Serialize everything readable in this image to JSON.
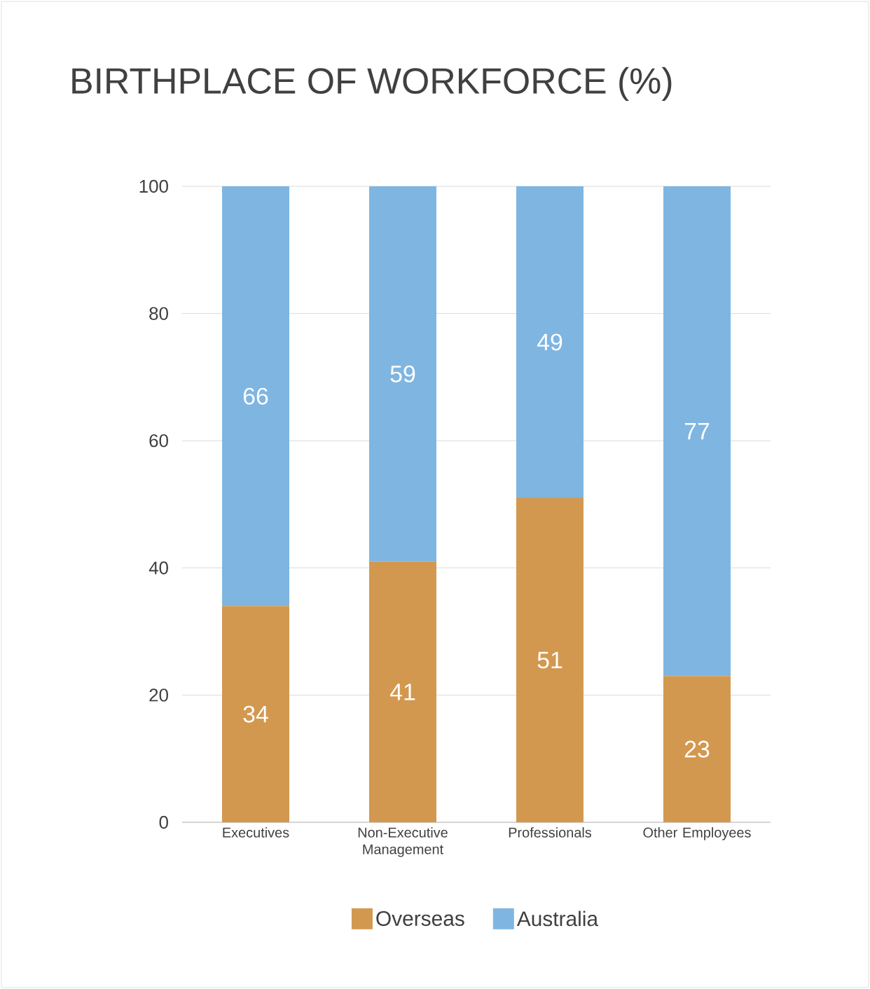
{
  "chart_data": {
    "type": "bar",
    "title": "BIRTHPLACE OF WORKFORCE (%)",
    "categories": [
      "Executives",
      "Non-Executive Management",
      "Professionals",
      "Other Employees"
    ],
    "series": [
      {
        "name": "Overseas",
        "color": "#d3984f",
        "values": [
          34,
          41,
          51,
          23
        ]
      },
      {
        "name": "Australia",
        "color": "#7fb5e1",
        "values": [
          66,
          59,
          49,
          77
        ]
      }
    ],
    "stacked": true,
    "ylim": [
      0,
      100
    ],
    "yticks": [
      0,
      20,
      40,
      60,
      80,
      100
    ],
    "grid": "y",
    "legend": "bottom",
    "data_labels": true
  }
}
